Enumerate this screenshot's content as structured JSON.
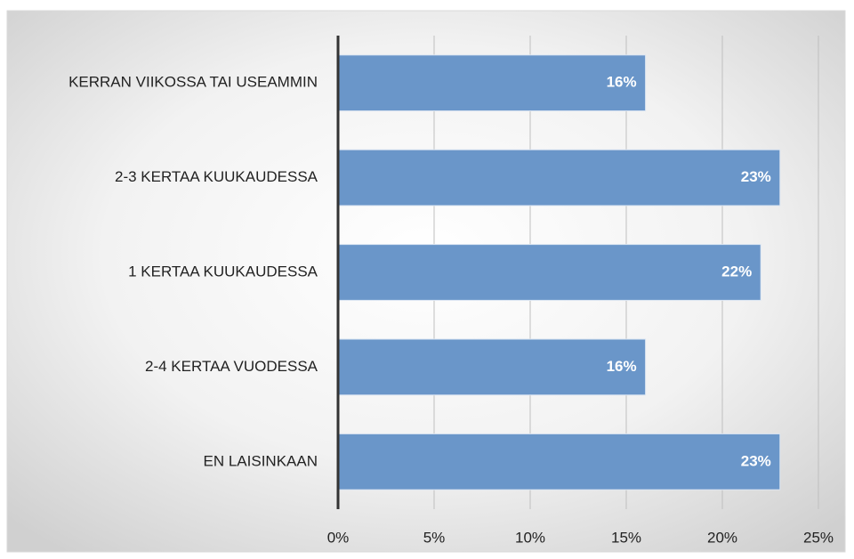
{
  "chart_data": {
    "type": "bar",
    "orientation": "horizontal",
    "categories": [
      "KERRAN VIIKOSSA TAI USEAMMIN",
      "2-3 KERTAA KUUKAUDESSA",
      "1 KERTAA KUUKAUDESSA",
      "2-4 KERTAA VUODESSA",
      "EN LAISINKAAN"
    ],
    "values": [
      16,
      23,
      22,
      16,
      23
    ],
    "value_labels": [
      "16%",
      "23%",
      "22%",
      "16%",
      "23%"
    ],
    "color": "#6a96c9",
    "xlim": [
      0,
      25
    ],
    "xticks": [
      {
        "value": 0,
        "label": "0%"
      },
      {
        "value": 5,
        "label": "5%"
      },
      {
        "value": 10,
        "label": "10%"
      },
      {
        "value": 15,
        "label": "15%"
      },
      {
        "value": 20,
        "label": "20%"
      },
      {
        "value": 25,
        "label": "25%"
      }
    ],
    "grid": true
  }
}
